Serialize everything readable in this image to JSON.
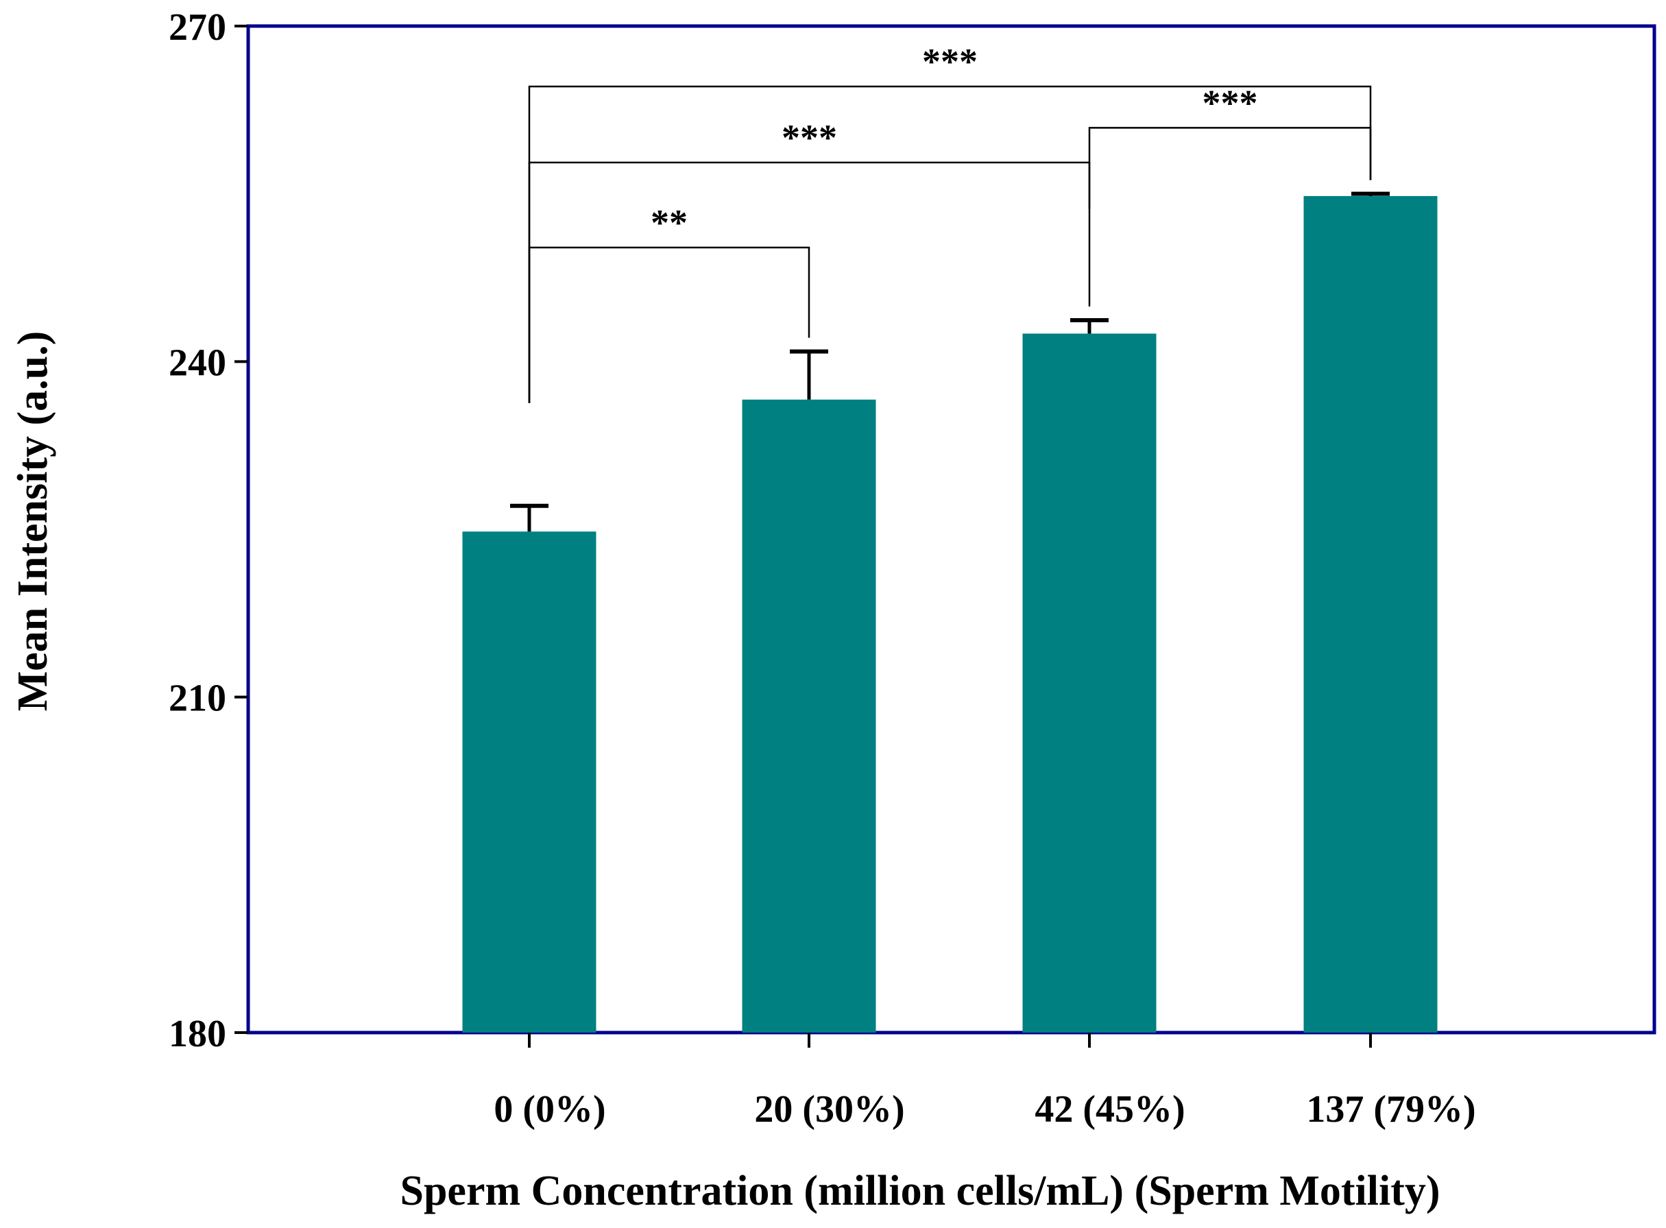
{
  "chart_data": {
    "type": "bar",
    "title": "",
    "xlabel": "Sperm Concentration (million cells/mL) (Sperm Motility)",
    "ylabel": "Mean Intensity (a.u.)",
    "categories": [
      "0 (0%)",
      "20 (30%)",
      "42 (45%)",
      "137 (79%)"
    ],
    "values": [
      224.8,
      236.6,
      242.5,
      254.8
    ],
    "error_upper": [
      2.3,
      4.3,
      1.2,
      0.2
    ],
    "ylim": [
      180,
      270
    ],
    "yticks": [
      180,
      210,
      240,
      270
    ],
    "ytick_labels": [
      "180",
      "210",
      "240",
      "270"
    ],
    "grid": false,
    "legend": "none",
    "colors": {
      "bar": "#008080",
      "frame": "#00008B",
      "annotation_line": "#000000"
    },
    "significance": [
      {
        "from": 0,
        "to": 1,
        "label": "**",
        "y": 250.2
      },
      {
        "from": 0,
        "to": 2,
        "label": "***",
        "y": 257.8
      },
      {
        "from": 2,
        "to": 3,
        "label": "***",
        "y": 260.9
      },
      {
        "from": 0,
        "to": 3,
        "label": "***",
        "y": 264.6
      }
    ]
  }
}
